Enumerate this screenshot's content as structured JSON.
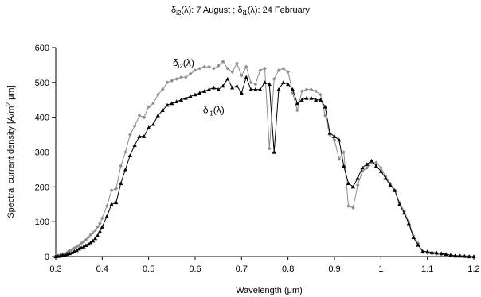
{
  "chart_data": {
    "type": "line",
    "title": {
      "d2": "δ",
      "d2sub": "i2",
      "d2rest": "(λ): 7 August ;  ",
      "d1": "δ",
      "d1sub": "i1",
      "d1rest": "(λ): 24 February"
    },
    "xlabel": "Wavelength (μm)",
    "ylabel": "Spectral current density [A/m² μm]",
    "ylabel_parts": {
      "pre": "Spectral current density [A/m",
      "sup": "2",
      "post": " μm]"
    },
    "xlim": [
      0.3,
      1.2
    ],
    "ylim": [
      0,
      600
    ],
    "xticks": [
      0.3,
      0.4,
      0.5,
      0.6,
      0.7,
      0.8,
      0.9,
      1,
      1.1,
      1.2
    ],
    "xtick_labels": [
      "0.3",
      "0.4",
      "0.5",
      "0.6",
      "0.7",
      "0.8",
      "0.9",
      "1",
      "1.1",
      "1.2"
    ],
    "yticks": [
      0,
      100,
      200,
      300,
      400,
      500,
      600
    ],
    "ytick_labels": [
      "0",
      "100",
      "200",
      "300",
      "400",
      "500",
      "600"
    ],
    "grid": false,
    "legend": "none",
    "annotations": [
      {
        "text_main": "δ",
        "text_sub": "i2",
        "text_rest": "(λ)",
        "x": 0.575,
        "y": 548
      },
      {
        "text_main": "δ",
        "text_sub": "i1",
        "text_rest": "(λ)",
        "x": 0.64,
        "y": 412
      }
    ],
    "series": [
      {
        "key": "i2",
        "color": "#8c8c8c",
        "marker": "diamond",
        "x": [
          0.3,
          0.305,
          0.31,
          0.315,
          0.32,
          0.325,
          0.33,
          0.335,
          0.34,
          0.345,
          0.35,
          0.355,
          0.36,
          0.365,
          0.37,
          0.375,
          0.38,
          0.385,
          0.39,
          0.395,
          0.4,
          0.41,
          0.42,
          0.43,
          0.44,
          0.45,
          0.46,
          0.47,
          0.48,
          0.49,
          0.5,
          0.51,
          0.52,
          0.53,
          0.54,
          0.55,
          0.56,
          0.57,
          0.58,
          0.59,
          0.6,
          0.61,
          0.62,
          0.63,
          0.64,
          0.65,
          0.66,
          0.67,
          0.68,
          0.69,
          0.7,
          0.71,
          0.72,
          0.73,
          0.74,
          0.75,
          0.76,
          0.77,
          0.78,
          0.79,
          0.8,
          0.81,
          0.82,
          0.83,
          0.84,
          0.85,
          0.86,
          0.87,
          0.88,
          0.89,
          0.9,
          0.91,
          0.92,
          0.93,
          0.94,
          0.95,
          0.96,
          0.97,
          0.98,
          0.99,
          1.0,
          1.01,
          1.02,
          1.03,
          1.04,
          1.05,
          1.06,
          1.07,
          1.08,
          1.09,
          1.1,
          1.11,
          1.12,
          1.13,
          1.14,
          1.15,
          1.16,
          1.17,
          1.18,
          1.19,
          1.2
        ],
        "y": [
          2,
          3,
          5,
          7,
          9,
          12,
          16,
          20,
          24,
          28,
          32,
          38,
          42,
          48,
          55,
          62,
          68,
          75,
          85,
          95,
          110,
          145,
          190,
          195,
          260,
          300,
          350,
          375,
          405,
          400,
          430,
          440,
          465,
          480,
          500,
          505,
          510,
          515,
          515,
          525,
          535,
          540,
          545,
          545,
          540,
          548,
          560,
          540,
          530,
          555,
          520,
          545,
          500,
          495,
          535,
          540,
          310,
          510,
          535,
          540,
          530,
          470,
          420,
          475,
          480,
          480,
          475,
          465,
          405,
          350,
          335,
          280,
          300,
          145,
          140,
          205,
          245,
          255,
          270,
          270,
          255,
          230,
          210,
          190,
          155,
          130,
          100,
          60,
          38,
          12,
          10,
          8,
          7,
          6,
          5,
          4,
          3,
          3,
          2,
          1,
          0
        ]
      },
      {
        "key": "i1",
        "color": "#000000",
        "marker": "triangle",
        "x": [
          0.3,
          0.305,
          0.31,
          0.315,
          0.32,
          0.325,
          0.33,
          0.335,
          0.34,
          0.345,
          0.35,
          0.355,
          0.36,
          0.365,
          0.37,
          0.375,
          0.38,
          0.385,
          0.39,
          0.395,
          0.4,
          0.41,
          0.42,
          0.43,
          0.44,
          0.45,
          0.46,
          0.47,
          0.48,
          0.49,
          0.5,
          0.51,
          0.52,
          0.53,
          0.54,
          0.55,
          0.56,
          0.57,
          0.58,
          0.59,
          0.6,
          0.61,
          0.62,
          0.63,
          0.64,
          0.65,
          0.66,
          0.67,
          0.68,
          0.69,
          0.7,
          0.71,
          0.72,
          0.73,
          0.74,
          0.75,
          0.76,
          0.77,
          0.78,
          0.79,
          0.8,
          0.81,
          0.82,
          0.83,
          0.84,
          0.85,
          0.86,
          0.87,
          0.88,
          0.89,
          0.9,
          0.91,
          0.92,
          0.93,
          0.94,
          0.95,
          0.96,
          0.97,
          0.98,
          0.99,
          1.0,
          1.01,
          1.02,
          1.03,
          1.04,
          1.05,
          1.06,
          1.07,
          1.08,
          1.09,
          1.1,
          1.11,
          1.12,
          1.13,
          1.14,
          1.15,
          1.16,
          1.17,
          1.18,
          1.19,
          1.2
        ],
        "y": [
          0,
          1,
          2,
          4,
          5,
          7,
          9,
          12,
          15,
          18,
          22,
          25,
          28,
          32,
          36,
          40,
          45,
          52,
          60,
          72,
          85,
          115,
          150,
          155,
          210,
          250,
          290,
          320,
          345,
          345,
          370,
          380,
          405,
          420,
          435,
          440,
          445,
          450,
          455,
          460,
          465,
          470,
          475,
          480,
          485,
          480,
          490,
          510,
          485,
          490,
          470,
          515,
          480,
          480,
          480,
          500,
          495,
          300,
          480,
          500,
          495,
          480,
          440,
          450,
          455,
          455,
          450,
          450,
          430,
          355,
          345,
          335,
          260,
          210,
          200,
          225,
          255,
          265,
          275,
          260,
          245,
          225,
          205,
          190,
          150,
          125,
          95,
          55,
          33,
          15,
          14,
          12,
          11,
          9,
          7,
          4,
          2,
          2,
          1,
          0,
          0
        ]
      }
    ]
  }
}
